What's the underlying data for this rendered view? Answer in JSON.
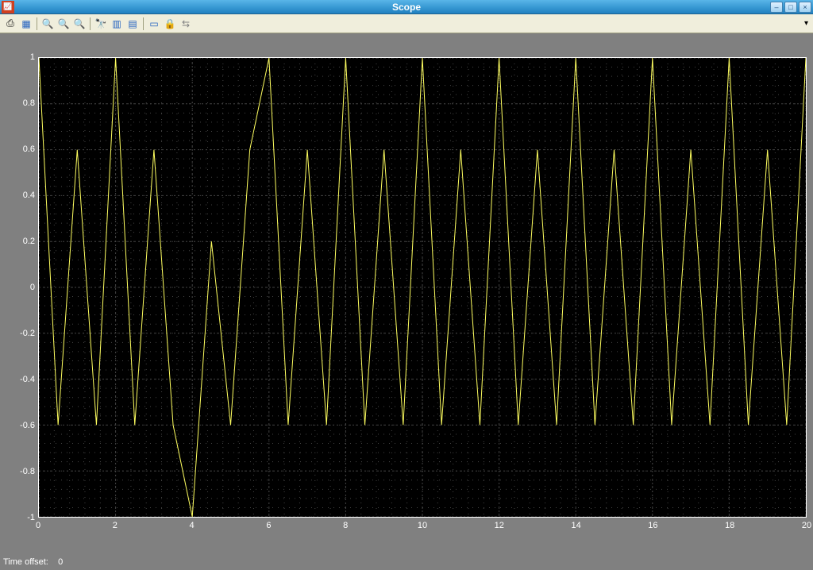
{
  "window": {
    "title": "Scope",
    "icon_text": "📊"
  },
  "toolbar": {
    "icons": [
      {
        "name": "print-icon",
        "glyph": "⎙",
        "color": "#000"
      },
      {
        "name": "params-icon",
        "glyph": "▦",
        "color": "#2060c0"
      },
      {
        "sep": true
      },
      {
        "name": "zoom-in-icon",
        "glyph": "🔍",
        "color": "#000"
      },
      {
        "name": "zoom-x-icon",
        "glyph": "🔍",
        "color": "#606060"
      },
      {
        "name": "zoom-y-icon",
        "glyph": "🔍",
        "color": "#606060"
      },
      {
        "sep": true
      },
      {
        "name": "autoscale-icon",
        "glyph": "🔭",
        "color": "#000"
      },
      {
        "name": "save-axes-icon",
        "glyph": "▥",
        "color": "#2060c0"
      },
      {
        "name": "restore-axes-icon",
        "glyph": "▤",
        "color": "#2060c0"
      },
      {
        "sep": true
      },
      {
        "name": "float-icon",
        "glyph": "▭",
        "color": "#2060c0"
      },
      {
        "name": "lock-icon",
        "glyph": "🔒",
        "color": "#808080"
      },
      {
        "name": "signal-icon",
        "glyph": "⇆",
        "color": "#808080"
      }
    ]
  },
  "chart": {
    "type": "line",
    "background_color": "#000000",
    "border_color": "#ffffff",
    "grid_color": "#444444",
    "line_color": "#ffff60",
    "line_width": 1,
    "xlim": [
      0,
      20
    ],
    "ylim": [
      -1,
      1
    ],
    "xticks": [
      0,
      2,
      4,
      6,
      8,
      10,
      12,
      14,
      16,
      18,
      20
    ],
    "yticks": [
      -1,
      -0.8,
      -0.6,
      -0.4,
      -0.2,
      0,
      0.2,
      0.4,
      0.6,
      0.8,
      1
    ],
    "minor_ticks_per_major": 5,
    "data": [
      [
        0,
        1
      ],
      [
        0.5,
        -0.6
      ],
      [
        1,
        0.6
      ],
      [
        1.5,
        -0.6
      ],
      [
        2,
        1
      ],
      [
        2.5,
        -0.6
      ],
      [
        3,
        0.6
      ],
      [
        3.5,
        -0.6
      ],
      [
        4,
        -1
      ],
      [
        4.5,
        0.2
      ],
      [
        5,
        -0.6
      ],
      [
        5.5,
        0.6
      ],
      [
        6,
        1
      ],
      [
        6.5,
        -0.6
      ],
      [
        7,
        0.6
      ],
      [
        7.5,
        -0.6
      ],
      [
        8,
        1
      ],
      [
        8.5,
        -0.6
      ],
      [
        9,
        0.6
      ],
      [
        9.5,
        -0.6
      ],
      [
        10,
        1
      ],
      [
        10.5,
        -0.6
      ],
      [
        11,
        0.6
      ],
      [
        11.5,
        -0.6
      ],
      [
        12,
        1
      ],
      [
        12.5,
        -0.6
      ],
      [
        13,
        0.6
      ],
      [
        13.5,
        -0.6
      ],
      [
        14,
        1
      ],
      [
        14.5,
        -0.6
      ],
      [
        15,
        0.6
      ],
      [
        15.5,
        -0.6
      ],
      [
        16,
        1
      ],
      [
        16.5,
        -0.6
      ],
      [
        17,
        0.6
      ],
      [
        17.5,
        -0.6
      ],
      [
        18,
        1
      ],
      [
        18.5,
        -0.6
      ],
      [
        19,
        0.6
      ],
      [
        19.5,
        -0.6
      ],
      [
        20,
        1
      ]
    ]
  },
  "status": {
    "time_offset_label": "Time offset:",
    "time_offset_value": "0"
  }
}
